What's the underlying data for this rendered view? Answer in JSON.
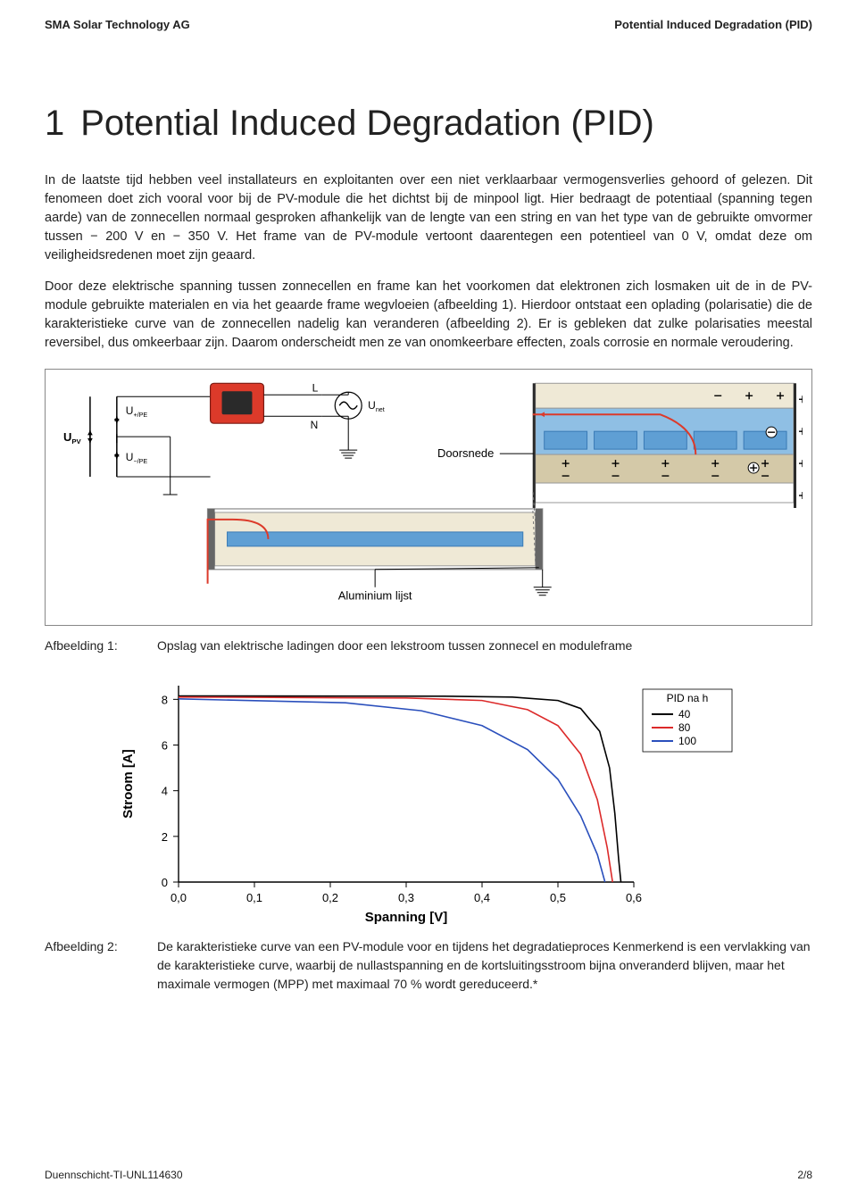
{
  "header": {
    "left": "SMA Solar Technology AG",
    "right": "Potential Induced Degradation (PID)"
  },
  "section": {
    "num": "1",
    "title": "Potential Induced Degradation (PID)"
  },
  "paragraphs": {
    "p1": "In de laatste tijd hebben veel installateurs en exploitanten over een niet verklaarbaar vermogensverlies gehoord of gelezen. Dit fenomeen doet zich vooral voor bij de PV-module die het dichtst bij de minpool ligt. Hier bedraagt de potentiaal (spanning tegen aarde) van de zonnecellen normaal gesproken afhankelijk van de lengte van een string en van het type van de gebruikte omvormer tussen − 200 V en − 350 V. Het frame van de PV-module vertoont daarentegen een potentieel van 0 V, omdat deze om veiligheidsredenen moet zijn geaard.",
    "p2": "Door deze elektrische spanning tussen zonnecellen en frame kan het voorkomen dat elektronen zich losmaken uit de in de PV-module gebruikte materialen en via het geaarde frame wegvloeien (afbeelding 1). Hierdoor ontstaat een oplading (polarisatie) die de karakteristieke curve van de zonnecellen nadelig kan veranderen (afbeelding 2). Er is gebleken dat zulke polarisaties meestal reversibel, dus omkeerbaar zijn. Daarom onderscheidt men ze van onomkeerbare effecten, zoals corrosie en normale veroudering."
  },
  "diagram1": {
    "labels": {
      "Upv": "U",
      "Upv_sub": "PV",
      "Up": "U",
      "Up_sub": "+/PE",
      "Un": "U",
      "Un_sub": "−/PE",
      "L": "L",
      "N": "N",
      "Unet": "U",
      "Unet_sub": "net",
      "doorsnede": "Doorsnede",
      "alu": "Aluminium lijst"
    },
    "colors": {
      "red": "#dc3a2a",
      "dark": "#2a2a2a",
      "grey": "#9a9a9a",
      "blue_light": "#8fbfe4",
      "blue_mid": "#5f9fd4",
      "beige": "#d4c9a8",
      "cream": "#efe9d6",
      "border": "#888888"
    }
  },
  "caption1": {
    "label": "Afbeelding 1:",
    "text": "Opslag van elektrische ladingen door een lekstroom tussen zonnecel en moduleframe"
  },
  "chart2": {
    "type": "line",
    "xlabel": "Spanning [V]",
    "ylabel": "Stroom [A]",
    "xlim": [
      0.0,
      0.6
    ],
    "ylim": [
      0,
      8.6
    ],
    "xticks": [
      0.0,
      0.1,
      0.2,
      0.3,
      0.4,
      0.5,
      0.6
    ],
    "xtick_labels": [
      "0,0",
      "0,1",
      "0,2",
      "0,3",
      "0,4",
      "0,5",
      "0,6"
    ],
    "yticks": [
      0,
      2,
      4,
      6,
      8
    ],
    "legend_title": "PID na h",
    "series": [
      {
        "name": "40",
        "color": "#000000",
        "points": [
          [
            0.0,
            8.15
          ],
          [
            0.35,
            8.14
          ],
          [
            0.44,
            8.1
          ],
          [
            0.5,
            7.95
          ],
          [
            0.53,
            7.6
          ],
          [
            0.555,
            6.6
          ],
          [
            0.568,
            5.0
          ],
          [
            0.575,
            3.0
          ],
          [
            0.58,
            1.0
          ],
          [
            0.583,
            0.0
          ]
        ]
      },
      {
        "name": "80",
        "color": "#dc2a2a",
        "points": [
          [
            0.0,
            8.1
          ],
          [
            0.3,
            8.06
          ],
          [
            0.4,
            7.95
          ],
          [
            0.46,
            7.55
          ],
          [
            0.5,
            6.85
          ],
          [
            0.53,
            5.6
          ],
          [
            0.552,
            3.6
          ],
          [
            0.565,
            1.5
          ],
          [
            0.572,
            0.0
          ]
        ]
      },
      {
        "name": "100",
        "color": "#2a4fbc",
        "points": [
          [
            0.0,
            8.02
          ],
          [
            0.22,
            7.85
          ],
          [
            0.32,
            7.5
          ],
          [
            0.4,
            6.85
          ],
          [
            0.46,
            5.8
          ],
          [
            0.5,
            4.5
          ],
          [
            0.53,
            2.9
          ],
          [
            0.552,
            1.2
          ],
          [
            0.562,
            0.0
          ]
        ]
      }
    ],
    "axis_color": "#000000",
    "line_width": 1.6,
    "title_fontsize": 14,
    "label_fontsize": 15,
    "tick_fontsize": 13
  },
  "caption2": {
    "label": "Afbeelding 2:",
    "text": "De karakteristieke curve van een PV-module voor en tijdens het degradatieproces Kenmerkend is een vervlakking van de karakteristieke curve, waarbij de nullastspanning en de kortsluitingsstroom bijna onveranderd blijven, maar het maximale vermogen (MPP) met maximaal 70 % wordt gereduceerd.*"
  },
  "footer": {
    "left": "Duennschicht-TI-UNL114630",
    "right": "2/8"
  }
}
